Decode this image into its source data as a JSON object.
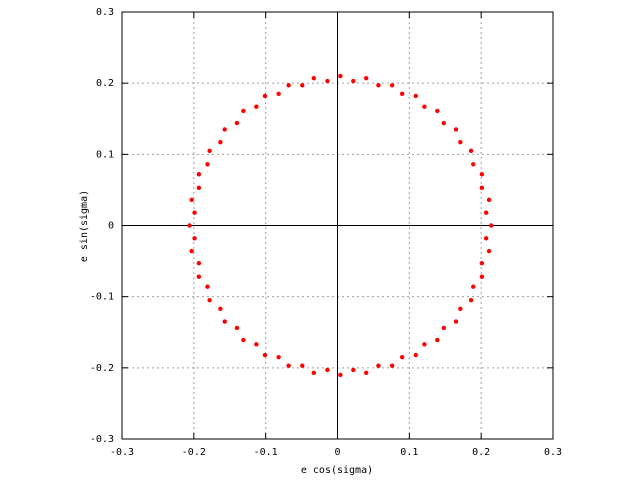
{
  "chart_data": {
    "type": "scatter",
    "xlabel": "e cos(sigma)",
    "ylabel": "e sin(sigma)",
    "xlim": [
      -0.3,
      0.3
    ],
    "ylim": [
      -0.3,
      0.3
    ],
    "xticks": [
      -0.3,
      -0.2,
      -0.1,
      0,
      0.1,
      0.2,
      0.3
    ],
    "yticks": [
      -0.3,
      -0.2,
      -0.1,
      0,
      0.1,
      0.2,
      0.3
    ],
    "grid": true,
    "zero_axes": true,
    "color": "#ff0000",
    "x": [
      0.214,
      0.207,
      0.211,
      0.201,
      0.201,
      0.189,
      0.186,
      0.171,
      0.165,
      0.148,
      0.139,
      0.121,
      0.109,
      0.09,
      0.076,
      0.057,
      0.04,
      0.022,
      0.004,
      -0.014,
      -0.033,
      -0.049,
      -0.068,
      -0.082,
      -0.101,
      -0.113,
      -0.131,
      -0.14,
      -0.157,
      -0.163,
      -0.178,
      -0.181,
      -0.193,
      -0.193,
      -0.203,
      -0.199,
      -0.206,
      -0.199,
      -0.203,
      -0.193,
      -0.193,
      -0.181,
      -0.178,
      -0.163,
      -0.157,
      -0.14,
      -0.131,
      -0.113,
      -0.101,
      -0.082,
      -0.068,
      -0.049,
      -0.033,
      -0.014,
      0.004,
      0.022,
      0.04,
      0.057,
      0.076,
      0.09,
      0.109,
      0.121,
      0.139,
      0.148,
      0.165,
      0.171,
      0.186,
      0.189,
      0.201,
      0.201,
      0.211,
      0.207
    ],
    "y": [
      0,
      0.018,
      0.036,
      0.053,
      0.072,
      0.086,
      0.105,
      0.117,
      0.135,
      0.144,
      0.161,
      0.167,
      0.182,
      0.185,
      0.197,
      0.197,
      0.207,
      0.203,
      0.21,
      0.203,
      0.207,
      0.197,
      0.197,
      0.185,
      0.182,
      0.167,
      0.161,
      0.144,
      0.135,
      0.117,
      0.105,
      0.086,
      0.072,
      0.053,
      0.036,
      0.018,
      0,
      -0.018,
      -0.036,
      -0.053,
      -0.072,
      -0.086,
      -0.105,
      -0.117,
      -0.135,
      -0.144,
      -0.161,
      -0.167,
      -0.182,
      -0.185,
      -0.197,
      -0.197,
      -0.207,
      -0.203,
      -0.21,
      -0.203,
      -0.207,
      -0.197,
      -0.197,
      -0.185,
      -0.182,
      -0.167,
      -0.161,
      -0.144,
      -0.135,
      -0.117,
      -0.105,
      -0.086,
      -0.072,
      -0.053,
      -0.036,
      -0.018
    ]
  }
}
